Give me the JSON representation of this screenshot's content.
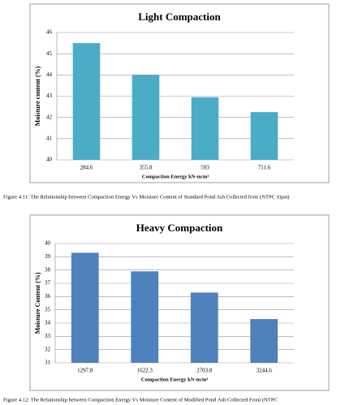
{
  "chart_data": [
    {
      "type": "bar",
      "title": "Light Compaction",
      "ylabel": "Moisture content (%)",
      "xlabel": "Compaction Energy kN-m/m³",
      "categories": [
        "284.6",
        "355.8",
        "593",
        "711.6"
      ],
      "values": [
        45.5,
        44.0,
        42.95,
        42.25
      ],
      "color": "#4bacc6",
      "ylim": [
        40,
        46
      ],
      "yticks": [
        40,
        41,
        42,
        43,
        44,
        45,
        46
      ],
      "grid": true,
      "caption": "Figure 4.11: The Relationship between Compaction Energy Vs Moisture Content of Standard Pond Ash Collected from (NTPC Sipat)"
    },
    {
      "type": "bar",
      "title": "Heavy Compaction",
      "ylabel": "Moisture Content (%)",
      "xlabel": "Compaction Energy kN-m/m³",
      "categories": [
        "1297.8",
        "1622.3",
        "2703.8",
        "3244.6"
      ],
      "values": [
        39.3,
        37.9,
        36.3,
        34.3
      ],
      "color": "#4f81bd",
      "ylim": [
        31,
        40
      ],
      "yticks": [
        31,
        32,
        33,
        34,
        35,
        36,
        37,
        38,
        39,
        40
      ],
      "grid": true,
      "caption": "Figure 4.12: The Relationship between Compaction Energy Vs Moisture Content of Modified Pond Ash Collected From (NTPC"
    }
  ]
}
